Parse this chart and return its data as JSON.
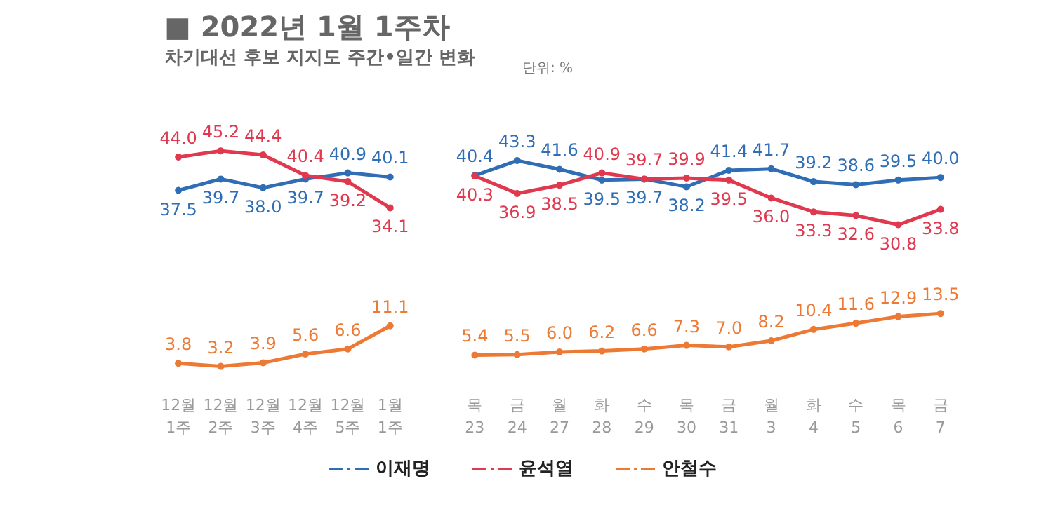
{
  "chart_data": {
    "type": "line",
    "title": "■ 2022년 1월 1주차",
    "subtitle": "차기대선 후보 지지도 주간•일간 변화",
    "annotations": [
      "단위: %"
    ],
    "categories": [
      "12월\n1주",
      "12월\n2주",
      "12월\n3주",
      "12월\n4주",
      "12월\n5주",
      "1월\n1주",
      null,
      "목\n23",
      "금\n24",
      "월\n27",
      "화\n28",
      "수\n29",
      "목\n30",
      "금\n31",
      "월\n3",
      "화\n4",
      "수\n5",
      "목\n6",
      "금\n7"
    ],
    "series": [
      {
        "name": "이재명",
        "color": "#2f6db5",
        "values": [
          37.5,
          39.7,
          38.0,
          39.7,
          40.9,
          40.1,
          null,
          40.4,
          43.3,
          41.6,
          39.5,
          39.7,
          38.2,
          41.4,
          41.7,
          39.2,
          38.6,
          39.5,
          40.0
        ],
        "value_labels": [
          "37.5",
          "39.7",
          "38.0",
          "39.7",
          "40.9",
          "40.1",
          null,
          "40.4",
          "43.3",
          "41.6",
          "39.5",
          "39.7",
          "38.2",
          "41.4",
          "41.7",
          "39.2",
          "38.6",
          "39.5",
          "40.0"
        ]
      },
      {
        "name": "윤석열",
        "color": "#e0394f",
        "values": [
          44.0,
          45.2,
          44.4,
          40.4,
          39.2,
          34.1,
          null,
          40.3,
          36.9,
          38.5,
          40.9,
          39.7,
          39.9,
          39.5,
          36.0,
          33.3,
          32.6,
          30.8,
          33.8
        ],
        "value_labels": [
          "44.0",
          "45.2",
          "44.4",
          "40.4",
          "39.2",
          "34.1",
          null,
          "40.3",
          "36.9",
          "38.5",
          "40.9",
          "39.7",
          "39.9",
          "39.5",
          "36.0",
          "33.3",
          "32.6",
          "30.8",
          "33.8"
        ]
      },
      {
        "name": "안철수",
        "color": "#ec7a35",
        "values": [
          3.8,
          3.2,
          3.9,
          5.6,
          6.6,
          11.1,
          null,
          5.4,
          5.5,
          6.0,
          6.2,
          6.6,
          7.3,
          7.0,
          8.2,
          10.4,
          11.6,
          12.9,
          13.5
        ],
        "value_labels": [
          "3.8",
          "3.2",
          "3.9",
          "5.6",
          "6.6",
          "11.1",
          null,
          "5.4",
          "5.5",
          "6.0",
          "6.2",
          "6.6",
          "7.3",
          "7.0",
          "8.2",
          "10.4",
          "11.6",
          "12.9",
          "13.5"
        ]
      }
    ],
    "tick_labels": "x",
    "grid": false,
    "legend": "bottom",
    "marker": "circle",
    "line_style": "solid"
  }
}
